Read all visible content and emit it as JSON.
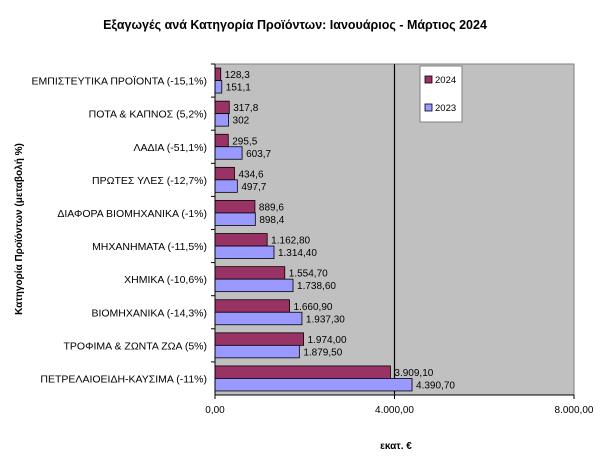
{
  "chart_data": {
    "type": "bar",
    "orientation": "horizontal",
    "title": "Εξαγωγές ανά Κατηγορία Προϊόντων: Ιανουάριος - Μάρτιος 2024",
    "xlabel": "εκατ. €",
    "ylabel": "Κατηγορία Προϊόντων (μεταβολή %)",
    "xlim": [
      0,
      8000
    ],
    "x_ticks": [
      0,
      4000,
      8000
    ],
    "x_tick_labels": [
      "0,00",
      "4.000,00",
      "8.000,00"
    ],
    "reference_line": 4000,
    "legend_position": "top-right",
    "grid": false,
    "categories": [
      "ΕΜΠΙΣΤΕΥΤΙΚΑ ΠΡΟΪΟΝΤΑ (-15,1%)",
      "ΠΟΤΑ & ΚΑΠΝΟΣ (5,2%)",
      "ΛΑΔΙΑ (-51,1%)",
      "ΠΡΩΤΕΣ ΥΛΕΣ (-12,7%)",
      "ΔΙΑΦΟΡΑ ΒΙΟΜΗΧΑΝΙΚΑ (-1%)",
      "ΜΗΧΑΝΗΜΑΤΑ (-11,5%)",
      "ΧΗΜΙΚΑ (-10,6%)",
      "ΒΙΟΜΗΧΑΝΙΚΑ (-14,3%)",
      "ΤΡΟΦΙΜΑ & ΖΩΝΤΑ ΖΩΑ (5%)",
      "ΠΕΤΡΕΛΑΙΟΕΙΔΗ-ΚΑΥΣΙΜΑ (-11%)"
    ],
    "series": [
      {
        "name": "2024",
        "color": "#993366",
        "values": [
          128.3,
          317.8,
          295.5,
          434.6,
          889.6,
          1162.8,
          1554.7,
          1660.9,
          1974.0,
          3909.1
        ],
        "labels": [
          "128,3",
          "317,8",
          "295,5",
          "434,6",
          "889,6",
          "1.162,80",
          "1.554,70",
          "1.660,90",
          "1.974,00",
          "3.909,10"
        ]
      },
      {
        "name": "2023",
        "color": "#9999ff",
        "values": [
          151.1,
          302,
          603.7,
          497.7,
          898.4,
          1314.4,
          1738.6,
          1937.3,
          1879.5,
          4390.7
        ],
        "labels": [
          "151,1",
          "302",
          "603,7",
          "497,7",
          "898,4",
          "1.314,40",
          "1.738,60",
          "1.937,30",
          "1.879,50",
          "4.390,70"
        ]
      }
    ],
    "plot_background": "#c0c0c0"
  }
}
